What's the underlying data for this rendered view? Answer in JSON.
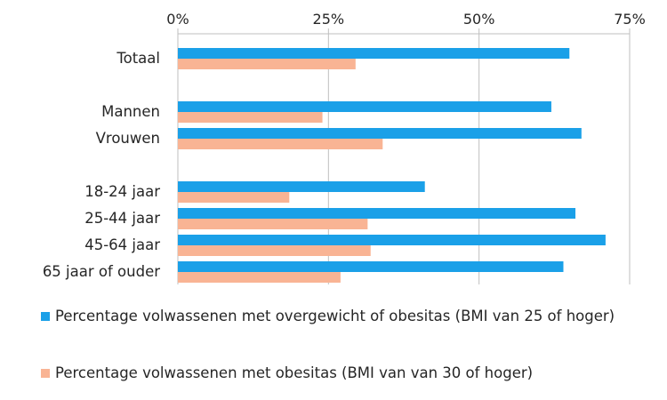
{
  "chart_data": {
    "type": "bar",
    "orientation": "horizontal",
    "categories": [
      "Totaal",
      "",
      "Mannen",
      "Vrouwen",
      "",
      "18-24 jaar",
      "25-44 jaar",
      "45-64 jaar",
      "65 jaar of ouder"
    ],
    "series": [
      {
        "name": "Percentage volwassenen met overgewicht of obesitas (BMI van 25 of hoger)",
        "color": "#1aa0e8",
        "values": [
          65,
          null,
          62,
          67,
          null,
          41,
          66,
          71,
          64
        ]
      },
      {
        "name": "Percentage volwassenen met obesitas (BMI van van 30 of hoger)",
        "color": "#f9b494",
        "values": [
          29.5,
          null,
          24,
          34,
          null,
          18.5,
          31.5,
          32,
          27
        ]
      }
    ],
    "xlim": [
      0,
      75
    ],
    "xticks": [
      "0%",
      "25%",
      "50%",
      "75%"
    ],
    "xtick_values": [
      0,
      25,
      50,
      75
    ],
    "grid": true,
    "legend_position": "bottom"
  }
}
